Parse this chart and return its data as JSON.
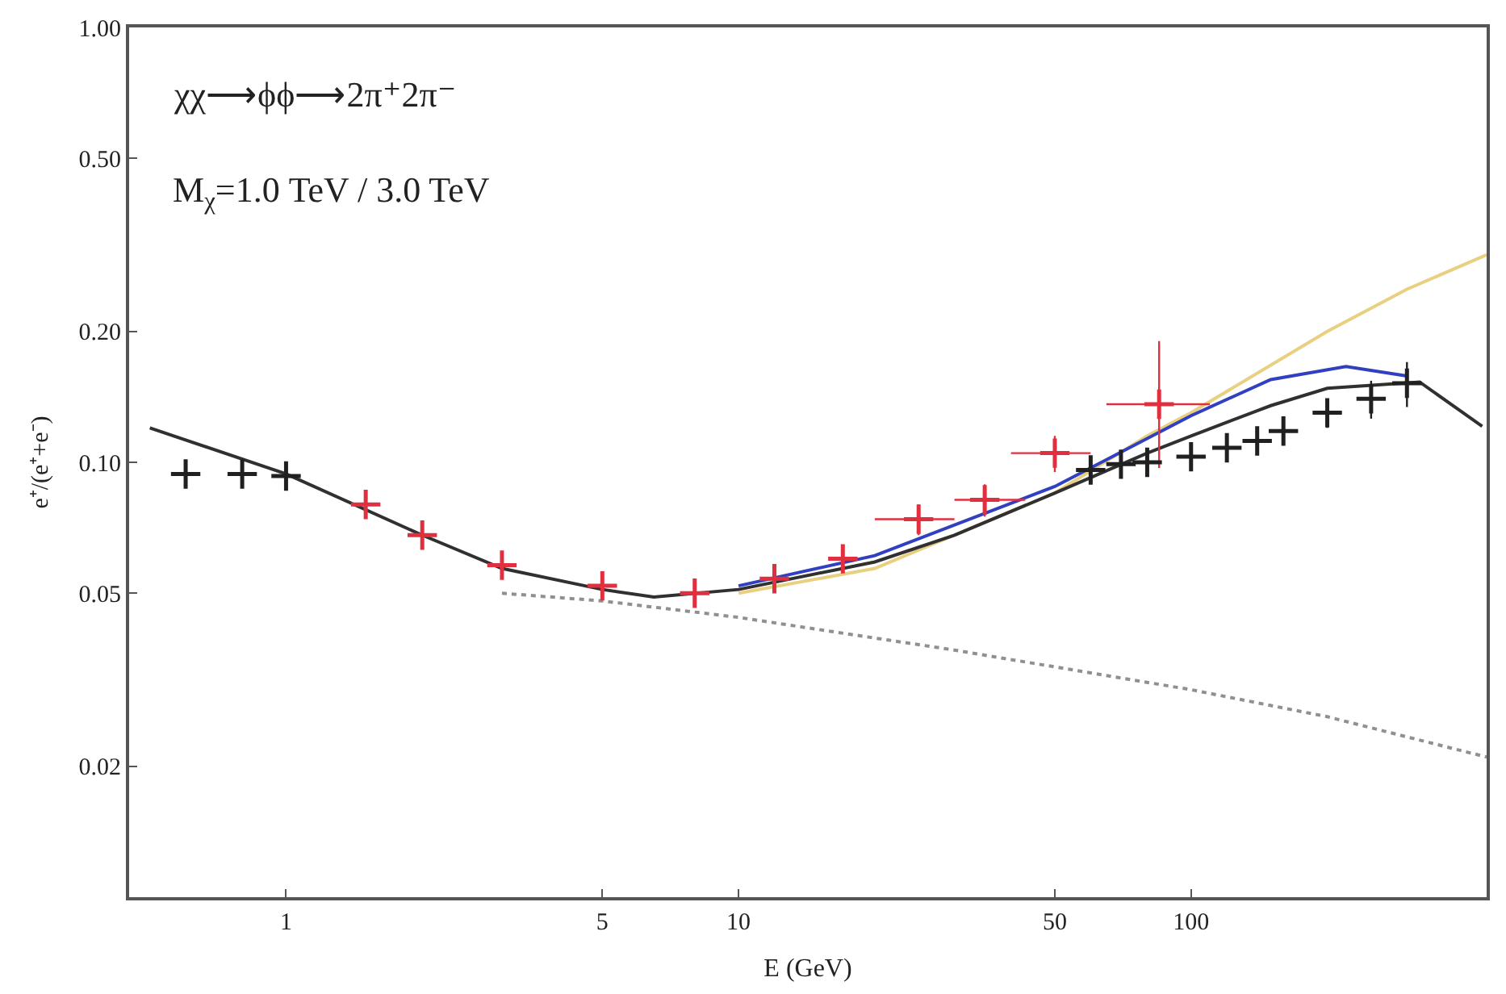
{
  "chart_data": {
    "type": "line",
    "xlabel": "E (GeV)",
    "ylabel": "e⁺/(e⁺+e⁻)",
    "log": "xy",
    "xlim": [
      0.45,
      450
    ],
    "ylim": [
      0.01,
      1
    ],
    "xticks": [
      1,
      5,
      10,
      50,
      100
    ],
    "yticks": [
      {
        "value": 0.02,
        "label": "0.02"
      },
      {
        "value": 0.05,
        "label": "0.05"
      },
      {
        "value": 0.1,
        "label": "0.10"
      },
      {
        "value": 0.2,
        "label": "0.20"
      },
      {
        "value": 0.5,
        "label": "0.50"
      },
      {
        "value": 1,
        "label": "1.00"
      }
    ],
    "annotations": [
      "χχ⟶ϕϕ⟶2π⁺2π⁻",
      "M$_{χ}$=1.0 TeV / 3.0 TeV"
    ],
    "series": [
      {
        "color": "#e8d080",
        "line_style": "solid",
        "x": [
          10,
          20,
          50,
          80,
          100,
          200,
          300,
          450
        ],
        "values": [
          0.05,
          0.057,
          0.085,
          0.115,
          0.13,
          0.2,
          0.25,
          0.3
        ]
      },
      {
        "color": "#3040c0",
        "line_style": "solid",
        "x": [
          10,
          20,
          50,
          100,
          150,
          220,
          300
        ],
        "values": [
          0.052,
          0.061,
          0.088,
          0.128,
          0.155,
          0.166,
          0.158
        ]
      },
      {
        "color": "#909090",
        "line_style": "dotted",
        "x": [
          3,
          5,
          10,
          30,
          100,
          200,
          450
        ],
        "values": [
          0.05,
          0.048,
          0.044,
          0.037,
          0.03,
          0.026,
          0.021
        ]
      },
      {
        "color": "#303030",
        "line_style": "solid",
        "x": [
          0.5,
          1,
          2,
          3,
          5,
          6.5,
          10,
          20,
          30,
          50,
          80,
          100,
          150,
          200,
          320,
          440
        ],
        "values": [
          0.12,
          0.094,
          0.068,
          0.057,
          0.051,
          0.049,
          0.051,
          0.059,
          0.068,
          0.085,
          0.105,
          0.115,
          0.135,
          0.148,
          0.153,
          0.121
        ]
      },
      {
        "type": "scatter",
        "marker": "cross",
        "color": "#e03040",
        "x": [
          1.5,
          2,
          3,
          5,
          8,
          12,
          17,
          25,
          35,
          50,
          85
        ],
        "values": [
          0.08,
          0.068,
          0.058,
          0.052,
          0.05,
          0.054,
          0.06,
          0.074,
          0.082,
          0.105,
          0.136
        ],
        "errors": [
          null,
          null,
          null,
          null,
          null,
          null,
          null,
          0.006,
          0.007,
          0.01,
          [
            0.097,
            0.19
          ]
        ],
        "xerrors": [
          null,
          null,
          null,
          null,
          null,
          null,
          null,
          [
            20,
            30
          ],
          [
            30,
            43
          ],
          [
            40,
            60
          ],
          [
            65,
            110
          ]
        ]
      },
      {
        "type": "scatter",
        "marker": "cross",
        "color": "#202020",
        "x": [
          0.6,
          0.8,
          1,
          60,
          70,
          80,
          100,
          120,
          140,
          160,
          200,
          250,
          300
        ],
        "values": [
          0.094,
          0.094,
          0.093,
          0.096,
          0.099,
          0.1,
          0.103,
          0.108,
          0.112,
          0.118,
          0.13,
          0.14,
          0.152
        ],
        "errors": [
          null,
          null,
          null,
          0.004,
          0.004,
          0.005,
          0.005,
          0.006,
          0.007,
          0.008,
          0.01,
          0.014,
          0.018
        ]
      }
    ]
  }
}
